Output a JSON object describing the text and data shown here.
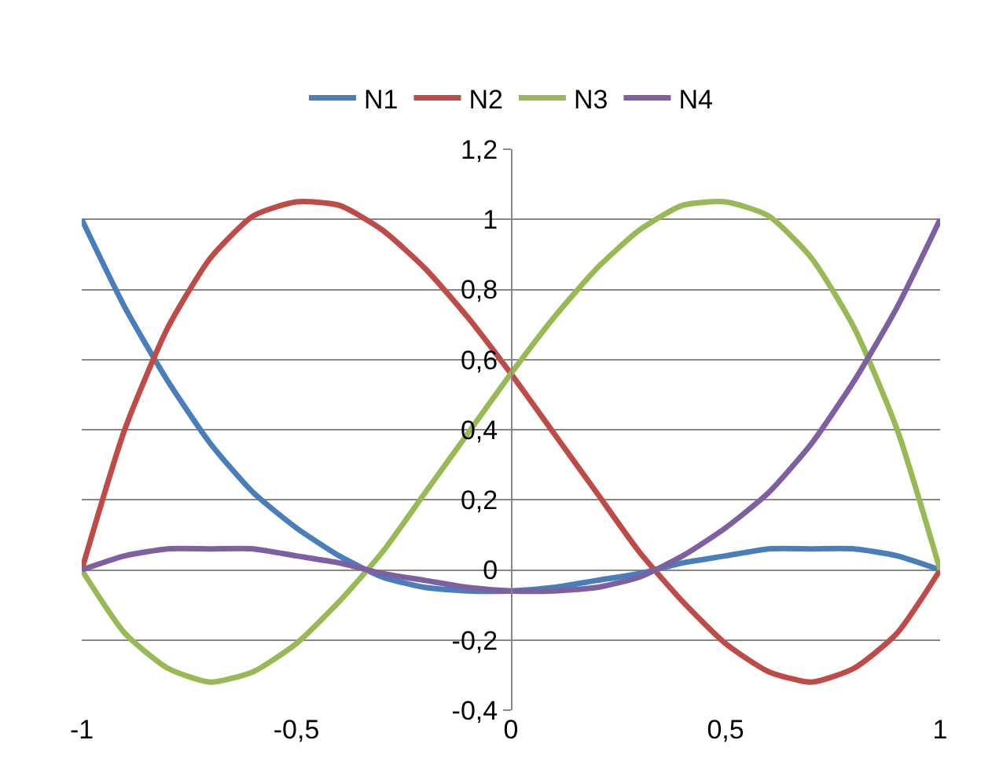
{
  "chart_data": {
    "type": "line",
    "x": [
      -1,
      -0.9,
      -0.8,
      -0.7,
      -0.6,
      -0.5,
      -0.4,
      -0.3,
      -0.2,
      -0.1,
      0,
      0.1,
      0.2,
      0.3,
      0.4,
      0.5,
      0.6,
      0.7,
      0.8,
      0.9,
      1
    ],
    "series": [
      {
        "name": "N1",
        "color": "#4a7ebb",
        "values": [
          1.0,
          0.75,
          0.54,
          0.36,
          0.22,
          0.12,
          0.04,
          -0.02,
          -0.05,
          -0.06,
          -0.06,
          -0.05,
          -0.03,
          -0.01,
          0.02,
          0.04,
          0.06,
          0.06,
          0.06,
          0.04,
          0
        ]
      },
      {
        "name": "N2",
        "color": "#be4b48",
        "values": [
          0,
          0.4,
          0.69,
          0.89,
          1.01,
          1.05,
          1.04,
          0.97,
          0.86,
          0.72,
          0.56,
          0.39,
          0.22,
          0.05,
          -0.09,
          -0.21,
          -0.29,
          -0.32,
          -0.28,
          -0.18,
          0
        ]
      },
      {
        "name": "N3",
        "color": "#98b954",
        "values": [
          0,
          -0.18,
          -0.28,
          -0.32,
          -0.29,
          -0.21,
          -0.09,
          0.05,
          0.22,
          0.39,
          0.56,
          0.72,
          0.86,
          0.97,
          1.04,
          1.05,
          1.01,
          0.89,
          0.69,
          0.4,
          0
        ]
      },
      {
        "name": "N4",
        "color": "#7d60a0",
        "values": [
          0,
          0.04,
          0.06,
          0.06,
          0.06,
          0.04,
          0.02,
          -0.01,
          -0.03,
          -0.05,
          -0.06,
          -0.06,
          -0.05,
          -0.02,
          0.04,
          0.12,
          0.22,
          0.36,
          0.54,
          0.75,
          1.0
        ]
      }
    ],
    "xlim": [
      -1,
      1
    ],
    "xticks": [
      {
        "value": -1,
        "label": "-1"
      },
      {
        "value": -0.5,
        "label": "-0,5"
      },
      {
        "value": 0,
        "label": "0"
      },
      {
        "value": 0.5,
        "label": "0,5"
      },
      {
        "value": 1,
        "label": "1"
      }
    ],
    "ylim": [
      -0.4,
      1.2
    ],
    "yticks": [
      {
        "value": -0.4,
        "label": "-0,4"
      },
      {
        "value": -0.2,
        "label": "-0,2"
      },
      {
        "value": 0,
        "label": "0"
      },
      {
        "value": 0.2,
        "label": "0,2"
      },
      {
        "value": 0.4,
        "label": "0,4"
      },
      {
        "value": 0.6,
        "label": "0,6"
      },
      {
        "value": 0.8,
        "label": "0,8"
      },
      {
        "value": 1,
        "label": "1"
      },
      {
        "value": 1.2,
        "label": "1,2"
      }
    ],
    "grid": "y",
    "legend": "top",
    "line_style": "solid",
    "marker": "none"
  }
}
